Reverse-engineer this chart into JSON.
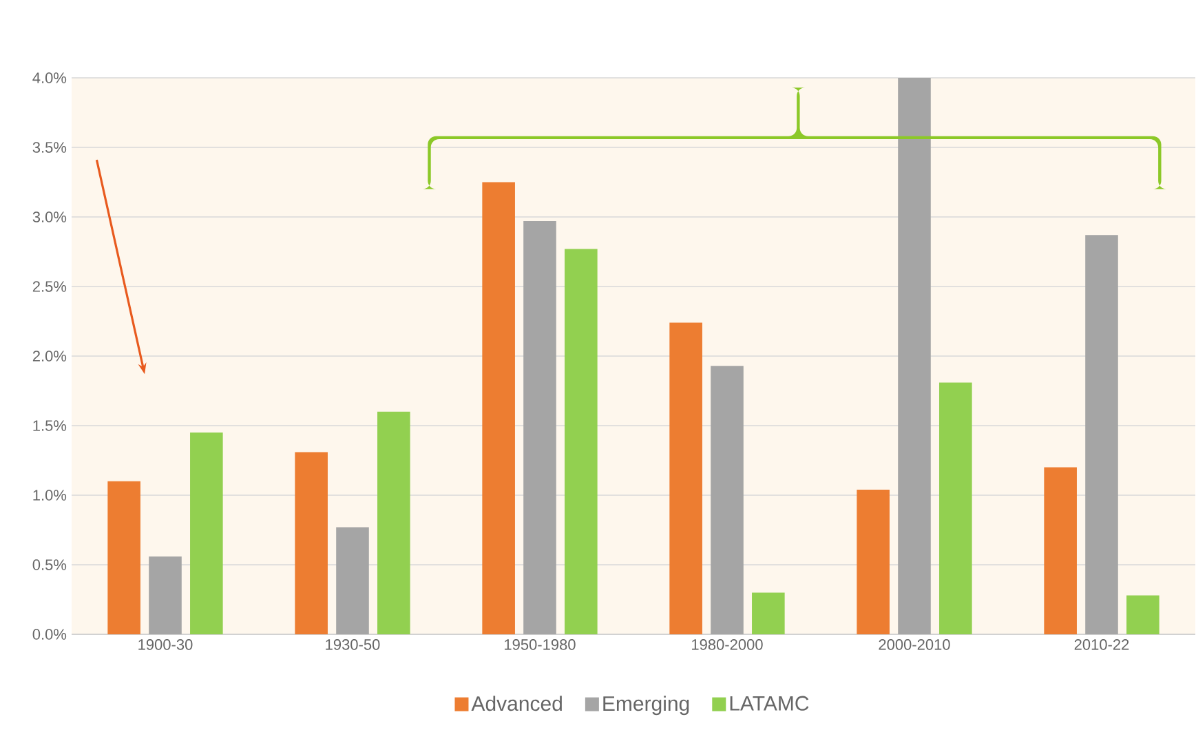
{
  "chart_data": {
    "type": "bar",
    "categories": [
      "1900-30",
      "1930-50",
      "1950-1980",
      "1980-2000",
      "2000-2010",
      "2010-22"
    ],
    "series": [
      {
        "name": "Advanced",
        "color": "#ed7d31",
        "values": [
          1.1,
          1.31,
          3.25,
          2.24,
          1.04,
          1.2
        ]
      },
      {
        "name": "Emerging",
        "color": "#a5a5a5",
        "values": [
          0.56,
          0.77,
          2.97,
          1.93,
          4.0,
          2.87
        ]
      },
      {
        "name": "LATAMC",
        "color": "#92d050",
        "values": [
          1.45,
          1.6,
          2.77,
          0.3,
          1.81,
          0.28
        ]
      }
    ],
    "ylim": [
      0,
      4.0
    ],
    "yticks": [
      {
        "value": 0,
        "label": "0.0%"
      },
      {
        "value": 0.5,
        "label": "0.5%"
      },
      {
        "value": 1.0,
        "label": "1.0%"
      },
      {
        "value": 1.5,
        "label": "1.5%"
      },
      {
        "value": 2.0,
        "label": "2.0%"
      },
      {
        "value": 2.5,
        "label": "2.5%"
      },
      {
        "value": 3.0,
        "label": "3.0%"
      },
      {
        "value": 3.5,
        "label": "3.5%"
      },
      {
        "value": 4.0,
        "label": "4.0%"
      }
    ],
    "grid": "y",
    "legend": "bottom"
  }
}
